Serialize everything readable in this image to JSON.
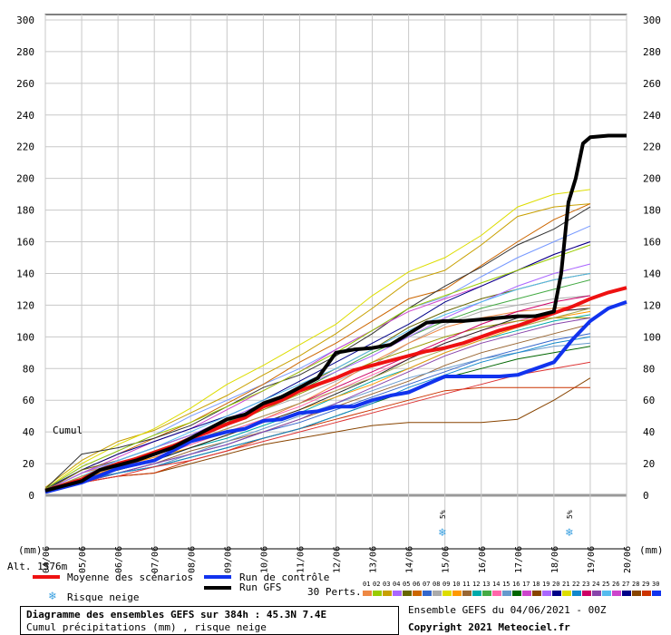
{
  "chart_data": {
    "type": "line",
    "ylim": [
      0,
      300
    ],
    "yticks": [
      0,
      20,
      40,
      60,
      80,
      100,
      120,
      140,
      160,
      180,
      200,
      220,
      240,
      260,
      280,
      300
    ],
    "xlim": [
      0,
      16
    ],
    "date_ticks": [
      {
        "x": 0,
        "label": "04/06"
      },
      {
        "x": 1,
        "label": "05/06"
      },
      {
        "x": 2,
        "label": "06/06"
      },
      {
        "x": 3,
        "label": "07/06"
      },
      {
        "x": 4,
        "label": "08/06"
      },
      {
        "x": 5,
        "label": "09/06"
      },
      {
        "x": 6,
        "label": "10/06"
      },
      {
        "x": 7,
        "label": "11/06"
      },
      {
        "x": 8,
        "label": "12/06"
      },
      {
        "x": 9,
        "label": "13/06"
      },
      {
        "x": 10,
        "label": "14/06"
      },
      {
        "x": 11,
        "label": "15/06"
      },
      {
        "x": 12,
        "label": "16/06"
      },
      {
        "x": 13,
        "label": "17/06"
      },
      {
        "x": 14,
        "label": "18/06"
      },
      {
        "x": 15,
        "label": "19/06"
      },
      {
        "x": 16,
        "label": "20/06"
      }
    ],
    "x_unit_label": "(mm)",
    "annotation": "Cumul",
    "altitude_label": "Alt. 1576m",
    "snow_risk_marks": [
      {
        "x": 11,
        "label": "5%"
      },
      {
        "x": 14.5,
        "label": "5%"
      }
    ],
    "series": [
      {
        "name": "Moyenne des scénarios",
        "color": "#ee1111",
        "width": 4,
        "x": [
          0,
          1,
          1.5,
          2,
          2.5,
          3,
          3.5,
          4,
          4.5,
          5,
          5.5,
          6,
          6.5,
          7,
          7.5,
          8,
          8.5,
          9,
          9.5,
          10,
          10.5,
          11,
          11.5,
          12,
          12.5,
          13,
          13.5,
          14,
          14.5,
          15,
          15.5,
          16
        ],
        "y": [
          3,
          10,
          16,
          20,
          23,
          27,
          31,
          36,
          40,
          45,
          49,
          56,
          60,
          66,
          70,
          74,
          79,
          82,
          85,
          88,
          91,
          93,
          96,
          100,
          104,
          107,
          111,
          115,
          119,
          124,
          128,
          131
        ]
      },
      {
        "name": "Run de contrôle",
        "color": "#1133ee",
        "width": 4,
        "x": [
          0,
          1,
          2,
          3,
          4,
          5,
          5.5,
          6,
          6.5,
          7,
          7.5,
          8,
          8.5,
          9,
          9.5,
          10,
          10.5,
          11,
          11.5,
          12,
          12.5,
          13,
          13.5,
          14,
          14.5,
          15,
          15.5,
          16
        ],
        "y": [
          2,
          8,
          17,
          22,
          34,
          40,
          42,
          47,
          48,
          52,
          53,
          56,
          56,
          60,
          63,
          65,
          70,
          75,
          75,
          75,
          75,
          76,
          80,
          84,
          98,
          110,
          118,
          122
        ]
      },
      {
        "name": "Run GFS",
        "color": "#000000",
        "width": 4,
        "x": [
          0,
          1,
          1.5,
          2,
          2.5,
          3,
          3.5,
          4,
          4.5,
          5,
          5.5,
          6,
          6.5,
          7,
          7.5,
          8,
          8.5,
          9,
          9.5,
          10,
          10.5,
          11,
          11.5,
          12,
          12.5,
          13,
          13.5,
          14,
          14.2,
          14.4,
          14.6,
          14.8,
          15,
          15.5,
          16
        ],
        "y": [
          3,
          9,
          16,
          19,
          22,
          26,
          30,
          36,
          42,
          48,
          51,
          58,
          62,
          68,
          74,
          90,
          92,
          93,
          95,
          102,
          109,
          110,
          110,
          111,
          112,
          113,
          113,
          116,
          140,
          185,
          200,
          222,
          226,
          227,
          227
        ]
      }
    ],
    "ensemble_members": [
      {
        "color": "#c8a000",
        "y": [
          5,
          22,
          34,
          41,
          52,
          63,
          76,
          88,
          102,
          118,
          135,
          142,
          158,
          176,
          182,
          184
        ]
      },
      {
        "color": "#dddd00",
        "y": [
          4,
          20,
          32,
          42,
          55,
          70,
          82,
          95,
          108,
          126,
          141,
          150,
          164,
          182,
          190,
          193
        ]
      },
      {
        "color": "#7799ff",
        "y": [
          4,
          18,
          28,
          38,
          50,
          60,
          70,
          80,
          92,
          104,
          118,
          125,
          138,
          150,
          160,
          170
        ]
      },
      {
        "color": "#cc6600",
        "y": [
          3,
          16,
          26,
          36,
          46,
          58,
          70,
          84,
          96,
          110,
          124,
          130,
          145,
          160,
          174,
          184
        ]
      },
      {
        "color": "#333333",
        "y": [
          4,
          26,
          30,
          36,
          44,
          56,
          68,
          76,
          88,
          102,
          118,
          132,
          144,
          158,
          168,
          182
        ]
      },
      {
        "color": "#cc44cc",
        "y": [
          3,
          14,
          24,
          34,
          42,
          54,
          66,
          78,
          92,
          104,
          116,
          124,
          132,
          142,
          152,
          160
        ]
      },
      {
        "color": "#000088",
        "y": [
          4,
          16,
          26,
          34,
          42,
          50,
          60,
          72,
          84,
          96,
          108,
          122,
          132,
          142,
          152,
          160
        ]
      },
      {
        "color": "#99cc00",
        "y": [
          4,
          18,
          28,
          38,
          46,
          56,
          66,
          78,
          90,
          104,
          118,
          126,
          134,
          142,
          150,
          158
        ]
      },
      {
        "color": "#666600",
        "y": [
          3,
          16,
          22,
          30,
          38,
          46,
          58,
          68,
          80,
          92,
          106,
          116,
          124,
          130,
          136,
          140
        ]
      },
      {
        "color": "#44aa44",
        "y": [
          3,
          14,
          22,
          30,
          38,
          46,
          56,
          66,
          78,
          90,
          100,
          110,
          118,
          124,
          130,
          136
        ]
      },
      {
        "color": "#aaaaaa",
        "y": [
          3,
          12,
          20,
          28,
          36,
          44,
          54,
          62,
          72,
          82,
          96,
          108,
          116,
          120,
          124,
          126
        ]
      },
      {
        "color": "#ee8844",
        "y": [
          3,
          14,
          20,
          26,
          34,
          40,
          48,
          58,
          70,
          84,
          96,
          106,
          112,
          116,
          118,
          120
        ]
      },
      {
        "color": "#ff66aa",
        "y": [
          2,
          12,
          18,
          24,
          32,
          40,
          48,
          56,
          66,
          76,
          86,
          96,
          104,
          110,
          116,
          118
        ]
      },
      {
        "color": "#00aaaa",
        "y": [
          2,
          10,
          16,
          22,
          30,
          36,
          44,
          52,
          62,
          72,
          80,
          90,
          98,
          104,
          110,
          114
        ]
      },
      {
        "color": "#996633",
        "y": [
          2,
          10,
          14,
          20,
          28,
          34,
          40,
          48,
          56,
          64,
          72,
          82,
          90,
          96,
          102,
          108
        ]
      },
      {
        "color": "#3366cc",
        "y": [
          2,
          10,
          14,
          20,
          26,
          32,
          40,
          46,
          54,
          62,
          70,
          78,
          86,
          92,
          98,
          102
        ]
      },
      {
        "color": "#006600",
        "y": [
          2,
          8,
          14,
          18,
          24,
          30,
          36,
          42,
          50,
          58,
          66,
          74,
          80,
          86,
          90,
          94
        ]
      },
      {
        "color": "#884400",
        "y": [
          2,
          8,
          12,
          14,
          20,
          26,
          32,
          36,
          40,
          44,
          46,
          46,
          46,
          48,
          60,
          74
        ]
      },
      {
        "color": "#cc3300",
        "y": [
          2,
          8,
          12,
          14,
          22,
          28,
          36,
          42,
          48,
          54,
          60,
          66,
          68,
          68,
          68,
          68
        ]
      },
      {
        "color": "#6699cc",
        "y": [
          2,
          9,
          14,
          18,
          26,
          34,
          42,
          50,
          58,
          66,
          74,
          80,
          86,
          90,
          94,
          96
        ]
      },
      {
        "color": "#999900",
        "y": [
          3,
          12,
          20,
          28,
          36,
          44,
          54,
          64,
          74,
          84,
          92,
          100,
          106,
          110,
          112,
          112
        ]
      },
      {
        "color": "#aa66ff",
        "y": [
          3,
          14,
          22,
          30,
          38,
          48,
          58,
          68,
          78,
          88,
          100,
          112,
          122,
          132,
          140,
          146
        ]
      },
      {
        "color": "#55bbee",
        "y": [
          3,
          12,
          22,
          30,
          40,
          50,
          60,
          70,
          80,
          92,
          104,
          114,
          122,
          130,
          136,
          140
        ]
      },
      {
        "color": "#cc0066",
        "y": [
          2,
          10,
          18,
          26,
          34,
          42,
          50,
          58,
          68,
          78,
          88,
          98,
          108,
          116,
          122,
          126
        ]
      },
      {
        "color": "#ff9900",
        "y": [
          2,
          10,
          18,
          24,
          30,
          38,
          46,
          54,
          62,
          70,
          80,
          90,
          98,
          106,
          112,
          116
        ]
      },
      {
        "color": "#222222",
        "y": [
          2,
          10,
          16,
          22,
          30,
          38,
          46,
          54,
          64,
          74,
          86,
          96,
          104,
          112,
          116,
          118
        ]
      },
      {
        "color": "#8844aa",
        "y": [
          2,
          8,
          14,
          20,
          26,
          32,
          40,
          48,
          58,
          68,
          78,
          88,
          96,
          102,
          108,
          112
        ]
      },
      {
        "color": "#1188cc",
        "y": [
          2,
          9,
          14,
          18,
          24,
          30,
          36,
          42,
          50,
          58,
          68,
          76,
          84,
          90,
          96,
          100
        ]
      },
      {
        "color": "#dd3333",
        "y": [
          2,
          8,
          12,
          18,
          22,
          28,
          34,
          40,
          46,
          52,
          58,
          64,
          70,
          76,
          80,
          84
        ]
      },
      {
        "color": "#aaaa55",
        "y": [
          3,
          12,
          18,
          26,
          34,
          42,
          50,
          58,
          66,
          74,
          84,
          92,
          100,
          106,
          112,
          118
        ]
      }
    ]
  },
  "legend": {
    "mean_label": "Moyenne des scénarios",
    "control_label": "Run de contrôle",
    "gfs_label": "Run GFS",
    "snow_label": "Risque neige",
    "perts_label": "30 Perts."
  },
  "perturbations": {
    "labels": [
      "01",
      "02",
      "03",
      "04",
      "05",
      "06",
      "07",
      "08",
      "09",
      "10",
      "11",
      "12",
      "13",
      "14",
      "15",
      "16",
      "17",
      "18",
      "19",
      "20",
      "21",
      "22",
      "23",
      "24",
      "25",
      "26",
      "27",
      "28",
      "29",
      "30"
    ],
    "colors": [
      "#ee8844",
      "#99cc00",
      "#c8a000",
      "#aa66ff",
      "#666600",
      "#cc6600",
      "#3366cc",
      "#aaaaaa",
      "#dddd00",
      "#ff9900",
      "#996633",
      "#00aaaa",
      "#44aa44",
      "#ff66aa",
      "#6699cc",
      "#006600",
      "#cc44cc",
      "#884400",
      "#aa66ff",
      "#000088",
      "#dddd00",
      "#1188cc",
      "#cc0066",
      "#8844aa",
      "#55bbee",
      "#cc44cc",
      "#000088",
      "#884400",
      "#cc3300",
      "#1133ee"
    ]
  },
  "info": {
    "title": "Diagramme des ensembles GEFS sur 384h : 45.3N 7.4E",
    "subtitle": "Cumul précipitations (mm) , risque neige",
    "ensemble": "Ensemble GEFS du 04/06/2021 - 00Z",
    "copyright": "Copyright 2021 Meteociel.fr"
  }
}
